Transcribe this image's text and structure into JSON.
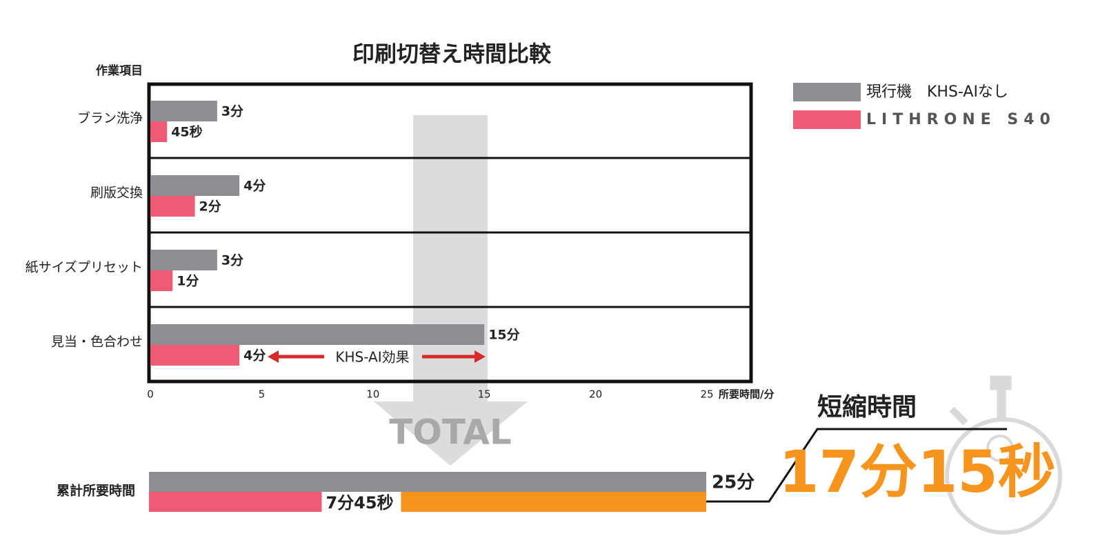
{
  "chart_data": [
    {
      "type": "bar",
      "title": "印刷切替え時間比較",
      "y_label": "作業項目",
      "x_label": "所要時間/分",
      "categories": [
        "ブラン洗浄",
        "刷版交換",
        "紙サイズプリセット",
        "見当・色合わせ"
      ],
      "series": [
        {
          "name": "現行機　KHS-AIなし",
          "color": "#8e8e92",
          "values": [
            3,
            4,
            3,
            15
          ],
          "value_labels": [
            "3分",
            "4分",
            "3分",
            "15分"
          ]
        },
        {
          "name": "LITHRONE S40",
          "color": "#ef5a74",
          "values": [
            0.75,
            2,
            1,
            4
          ],
          "value_labels": [
            "45秒",
            "2分",
            "1分",
            "4分"
          ]
        }
      ],
      "xlim": [
        0,
        25
      ],
      "xticks": [
        0,
        5,
        10,
        15,
        20,
        25
      ],
      "grid": false,
      "legend": "top-right",
      "annotation": "KHS-AI効果"
    },
    {
      "type": "bar",
      "annotation": "TOTAL",
      "categories": [
        "累計所要時間"
      ],
      "series": [
        {
          "color": "#8e8e92",
          "values": [
            25
          ],
          "value_labels": [
            "25分"
          ]
        },
        {
          "color": "#ef5a74",
          "values": [
            7.75
          ],
          "value_labels": [
            "7分45秒"
          ]
        }
      ],
      "savings": {
        "label": "短縮時間",
        "color": "#f7941d",
        "values": [
          17.25
        ],
        "value_labels": [
          "17分15秒"
        ]
      },
      "xlim": [
        0,
        25
      ]
    }
  ]
}
